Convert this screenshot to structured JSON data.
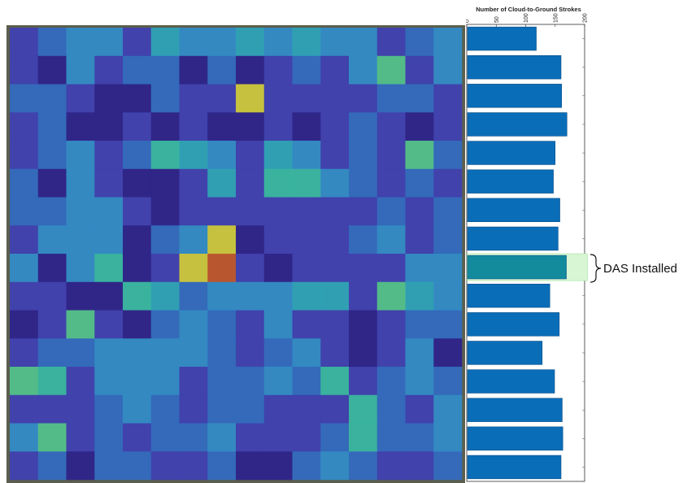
{
  "chart_data": [
    {
      "type": "heatmap",
      "description_free": true,
      "rows": 16,
      "cols": 16,
      "grid": [
        [
          1,
          2,
          3,
          3,
          1,
          4,
          3,
          3,
          4,
          3,
          4,
          3,
          3,
          1,
          2,
          3
        ],
        [
          1,
          0,
          3,
          1,
          2,
          2,
          0,
          2,
          0,
          1,
          2,
          1,
          3,
          6,
          1,
          3
        ],
        [
          2,
          2,
          1,
          0,
          0,
          2,
          1,
          1,
          8,
          1,
          1,
          1,
          1,
          2,
          2,
          1
        ],
        [
          1,
          2,
          0,
          0,
          1,
          0,
          1,
          0,
          0,
          1,
          0,
          1,
          2,
          1,
          0,
          1
        ],
        [
          1,
          2,
          3,
          1,
          2,
          5,
          4,
          3,
          1,
          4,
          3,
          1,
          2,
          1,
          6,
          2
        ],
        [
          2,
          0,
          3,
          1,
          0,
          0,
          1,
          4,
          1,
          5,
          5,
          3,
          2,
          1,
          2,
          1
        ],
        [
          2,
          2,
          3,
          3,
          1,
          0,
          1,
          1,
          1,
          1,
          1,
          1,
          1,
          2,
          1,
          2
        ],
        [
          1,
          3,
          3,
          3,
          0,
          2,
          3,
          8,
          0,
          1,
          1,
          1,
          2,
          3,
          1,
          2
        ],
        [
          3,
          0,
          3,
          5,
          0,
          1,
          8,
          9,
          1,
          0,
          1,
          1,
          1,
          1,
          3,
          3
        ],
        [
          1,
          1,
          0,
          0,
          5,
          4,
          2,
          3,
          3,
          3,
          4,
          4,
          1,
          6,
          4,
          3
        ],
        [
          0,
          1,
          6,
          1,
          0,
          2,
          3,
          2,
          1,
          3,
          1,
          1,
          0,
          1,
          2,
          2
        ],
        [
          1,
          2,
          2,
          3,
          3,
          3,
          3,
          2,
          1,
          2,
          3,
          1,
          0,
          1,
          3,
          0
        ],
        [
          6,
          5,
          1,
          3,
          3,
          3,
          1,
          2,
          2,
          3,
          2,
          5,
          1,
          2,
          3,
          2
        ],
        [
          1,
          1,
          1,
          2,
          3,
          2,
          1,
          2,
          2,
          1,
          1,
          1,
          5,
          2,
          1,
          3
        ],
        [
          3,
          6,
          1,
          2,
          1,
          2,
          2,
          3,
          1,
          1,
          1,
          2,
          5,
          2,
          2,
          3
        ],
        [
          1,
          2,
          0,
          2,
          2,
          1,
          1,
          2,
          0,
          0,
          2,
          3,
          2,
          1,
          1,
          2
        ]
      ],
      "colormap": [
        "#2a1f8f",
        "#3d3fb8",
        "#2f6cc8",
        "#2f8fd0",
        "#2aa8c0",
        "#35bea8",
        "#52c890",
        "#8ed067",
        "#d5cf3c",
        "#c5552b"
      ]
    },
    {
      "type": "bar",
      "orientation": "horizontal",
      "xlabel": "Number of Cloud-to-Ground Strokes",
      "xlim": [
        0,
        200
      ],
      "ticks": [
        "0",
        "50",
        "100",
        "150",
        "200"
      ],
      "tick_values": [
        0,
        50,
        100,
        150,
        200
      ],
      "values": [
        118,
        160,
        161,
        170,
        150,
        147,
        158,
        155,
        169,
        141,
        157,
        128,
        149,
        162,
        163,
        160
      ],
      "highlight_index": 8,
      "bar_color": "#0a6db8",
      "highlight_color": "#148b9d",
      "highlight_bg": "#d8f5d4"
    }
  ],
  "annotation": {
    "label": "DAS Installed"
  }
}
